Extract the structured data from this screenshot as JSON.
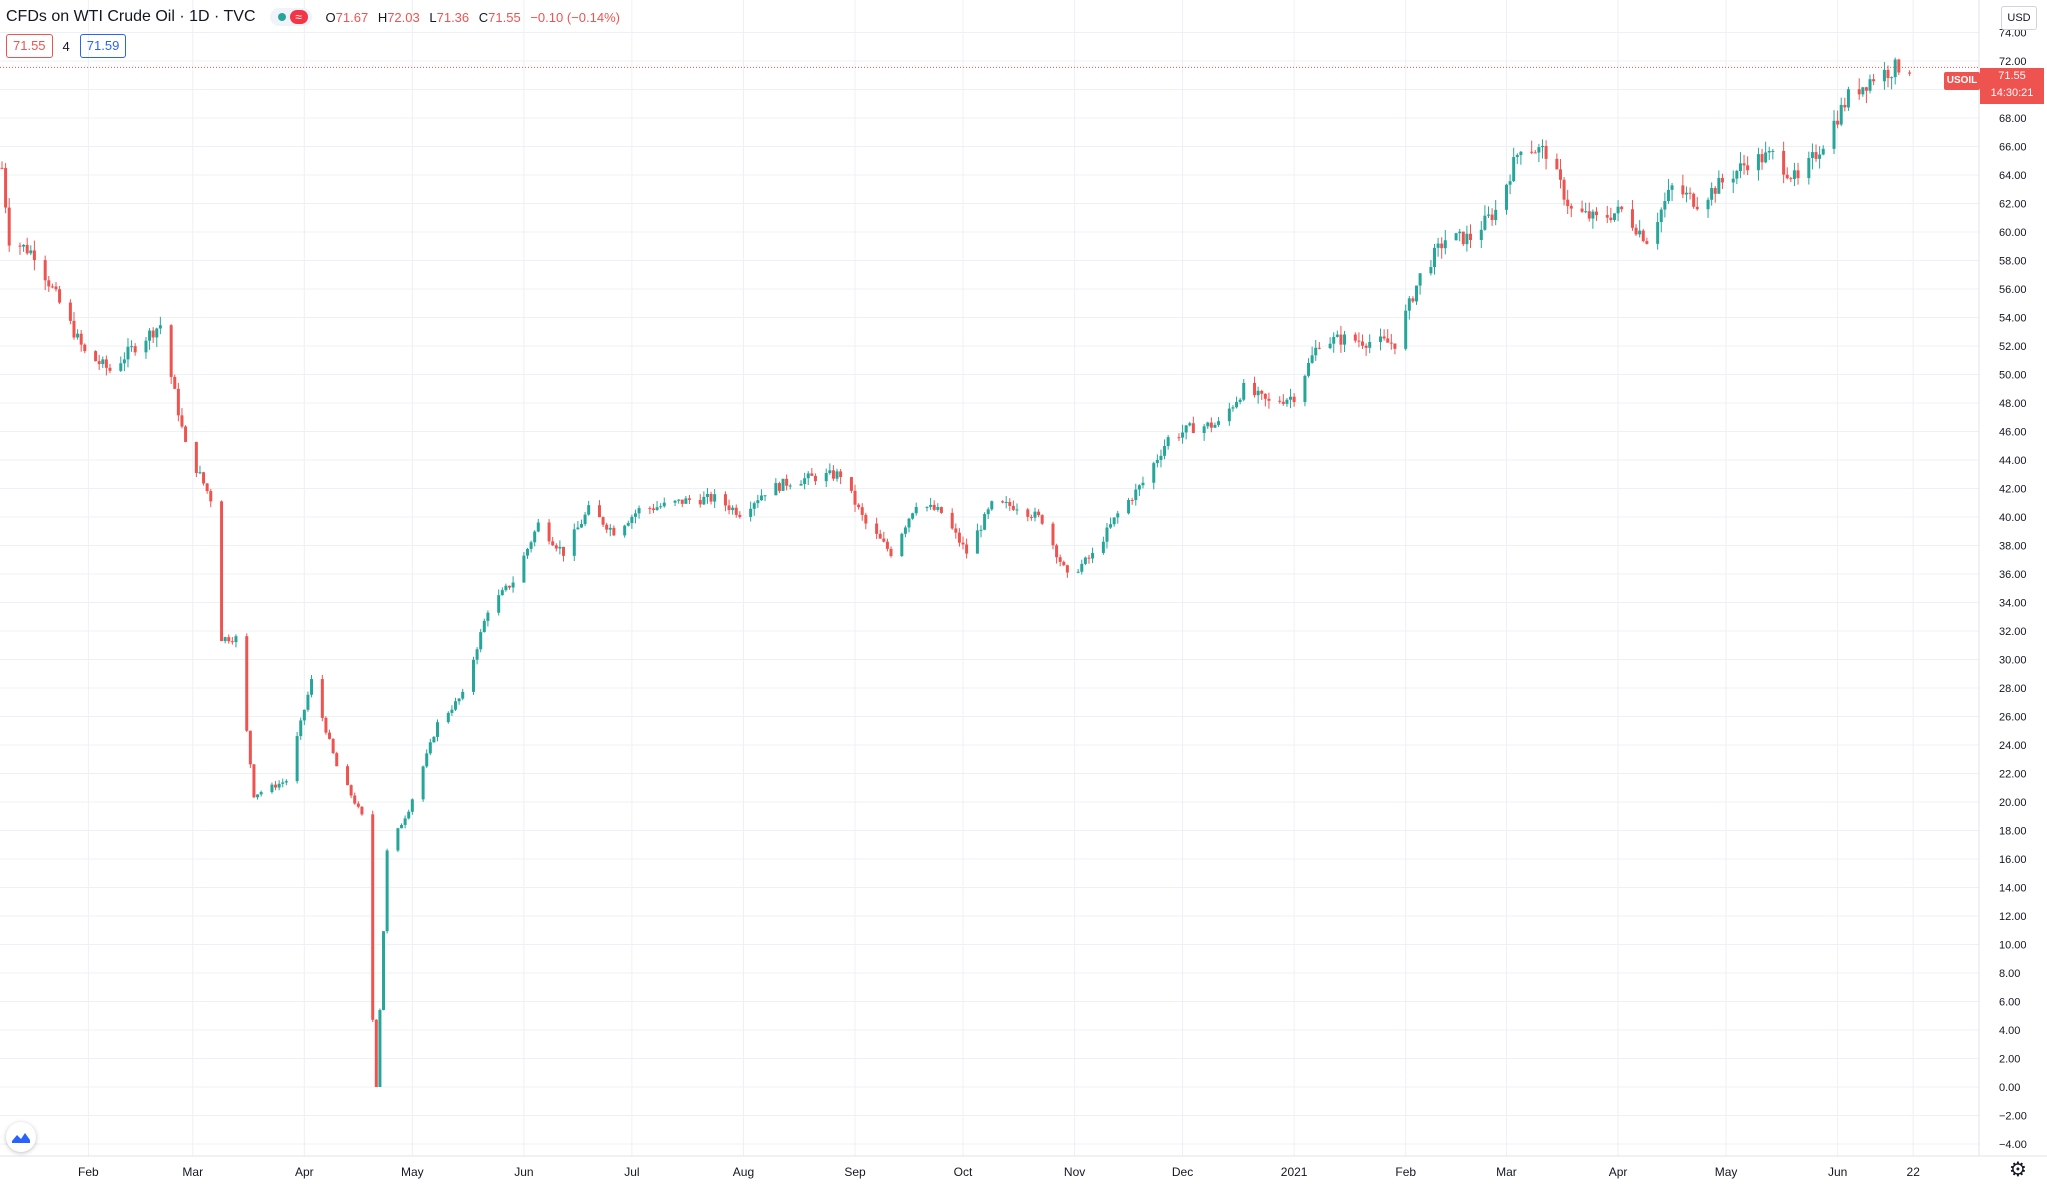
{
  "header": {
    "symbol_title": "CFDs on WTI Crude Oil · 1D · TVC",
    "status_approx": "≈",
    "ohlc": {
      "o_label": "O",
      "o_value": "71.67",
      "h_label": "H",
      "h_value": "72.03",
      "l_label": "L",
      "l_value": "71.36",
      "c_label": "C",
      "c_value": "71.55",
      "change": "−0.10 (−0.14%)"
    },
    "bid": "71.55",
    "spread": "4",
    "ask": "71.59"
  },
  "price_scale": {
    "currency": "USD",
    "symbol_tag": "USOIL",
    "last_price": "71.55",
    "countdown": "14:30:21"
  },
  "colors": {
    "up": "#26a69a",
    "down": "#ef5350",
    "grid": "#edf0f5",
    "text": "#131722",
    "accent_blue": "#2962ff"
  },
  "chart_data": {
    "type": "candlestick",
    "y_unit": "USD",
    "ylim": [
      -4,
      76
    ],
    "y_ticks": [
      -4,
      -2,
      0,
      2,
      4,
      6,
      8,
      10,
      12,
      14,
      16,
      18,
      20,
      22,
      24,
      26,
      28,
      30,
      32,
      34,
      36,
      38,
      40,
      42,
      44,
      46,
      48,
      50,
      52,
      54,
      56,
      58,
      60,
      62,
      64,
      66,
      68,
      70,
      72,
      74
    ],
    "x_ticks": [
      {
        "label": "Feb",
        "date": "2020-02-01"
      },
      {
        "label": "Mar",
        "date": "2020-03-01"
      },
      {
        "label": "Apr",
        "date": "2020-04-01"
      },
      {
        "label": "May",
        "date": "2020-05-01"
      },
      {
        "label": "Jun",
        "date": "2020-06-01"
      },
      {
        "label": "Jul",
        "date": "2020-07-01"
      },
      {
        "label": "Aug",
        "date": "2020-08-01"
      },
      {
        "label": "Sep",
        "date": "2020-09-01"
      },
      {
        "label": "Oct",
        "date": "2020-10-01"
      },
      {
        "label": "Nov",
        "date": "2020-11-01"
      },
      {
        "label": "Dec",
        "date": "2020-12-01"
      },
      {
        "label": "2021",
        "date": "2021-01-01"
      },
      {
        "label": "Feb",
        "date": "2021-02-01"
      },
      {
        "label": "Mar",
        "date": "2021-03-01"
      },
      {
        "label": "Apr",
        "date": "2021-04-01"
      },
      {
        "label": "May",
        "date": "2021-05-01"
      },
      {
        "label": "Jun",
        "date": "2021-06-01"
      },
      {
        "label": "22",
        "date": "2021-06-22"
      }
    ],
    "x_range": [
      "2020-01-08",
      "2021-06-30"
    ],
    "closes": [
      {
        "date": "2020-01-08",
        "close": 64.5
      },
      {
        "date": "2020-01-10",
        "close": 59.5
      },
      {
        "date": "2020-01-17",
        "close": 58.5
      },
      {
        "date": "2020-01-24",
        "close": 55.0
      },
      {
        "date": "2020-01-31",
        "close": 51.5
      },
      {
        "date": "2020-02-07",
        "close": 50.3
      },
      {
        "date": "2020-02-14",
        "close": 52.0
      },
      {
        "date": "2020-02-21",
        "close": 53.5
      },
      {
        "date": "2020-02-28",
        "close": 45.0
      },
      {
        "date": "2020-03-06",
        "close": 41.3
      },
      {
        "date": "2020-03-09",
        "close": 31.5
      },
      {
        "date": "2020-03-13",
        "close": 31.5
      },
      {
        "date": "2020-03-18",
        "close": 20.5
      },
      {
        "date": "2020-03-27",
        "close": 21.5
      },
      {
        "date": "2020-04-03",
        "close": 28.5
      },
      {
        "date": "2020-04-10",
        "close": 22.5
      },
      {
        "date": "2020-04-17",
        "close": 19.0
      },
      {
        "date": "2020-04-21",
        "close": 0.0
      },
      {
        "date": "2020-04-24",
        "close": 16.5
      },
      {
        "date": "2020-04-30",
        "close": 19.5
      },
      {
        "date": "2020-05-08",
        "close": 25.5
      },
      {
        "date": "2020-05-15",
        "close": 27.5
      },
      {
        "date": "2020-05-22",
        "close": 33.5
      },
      {
        "date": "2020-05-29",
        "close": 35.5
      },
      {
        "date": "2020-06-05",
        "close": 39.5
      },
      {
        "date": "2020-06-12",
        "close": 37.5
      },
      {
        "date": "2020-06-19",
        "close": 40.5
      },
      {
        "date": "2020-06-26",
        "close": 39.0
      },
      {
        "date": "2020-07-03",
        "close": 40.5
      },
      {
        "date": "2020-07-10",
        "close": 40.8
      },
      {
        "date": "2020-07-17",
        "close": 41.2
      },
      {
        "date": "2020-07-24",
        "close": 41.3
      },
      {
        "date": "2020-07-31",
        "close": 40.3
      },
      {
        "date": "2020-08-07",
        "close": 41.8
      },
      {
        "date": "2020-08-14",
        "close": 42.5
      },
      {
        "date": "2020-08-21",
        "close": 42.8
      },
      {
        "date": "2020-08-28",
        "close": 43.0
      },
      {
        "date": "2020-09-04",
        "close": 39.5
      },
      {
        "date": "2020-09-11",
        "close": 37.5
      },
      {
        "date": "2020-09-18",
        "close": 41.0
      },
      {
        "date": "2020-09-25",
        "close": 40.3
      },
      {
        "date": "2020-10-02",
        "close": 37.5
      },
      {
        "date": "2020-10-09",
        "close": 40.8
      },
      {
        "date": "2020-10-16",
        "close": 40.8
      },
      {
        "date": "2020-10-23",
        "close": 39.8
      },
      {
        "date": "2020-10-30",
        "close": 35.8
      },
      {
        "date": "2020-11-06",
        "close": 37.3
      },
      {
        "date": "2020-11-13",
        "close": 40.2
      },
      {
        "date": "2020-11-20",
        "close": 42.4
      },
      {
        "date": "2020-11-27",
        "close": 45.5
      },
      {
        "date": "2020-12-04",
        "close": 46.3
      },
      {
        "date": "2020-12-11",
        "close": 46.5
      },
      {
        "date": "2020-12-18",
        "close": 49.0
      },
      {
        "date": "2020-12-25",
        "close": 48.0
      },
      {
        "date": "2021-01-01",
        "close": 48.5
      },
      {
        "date": "2021-01-08",
        "close": 52.3
      },
      {
        "date": "2021-01-15",
        "close": 52.5
      },
      {
        "date": "2021-01-22",
        "close": 52.3
      },
      {
        "date": "2021-01-29",
        "close": 52.2
      },
      {
        "date": "2021-02-05",
        "close": 56.9
      },
      {
        "date": "2021-02-12",
        "close": 59.5
      },
      {
        "date": "2021-02-19",
        "close": 59.6
      },
      {
        "date": "2021-02-26",
        "close": 61.5
      },
      {
        "date": "2021-03-05",
        "close": 66.1
      },
      {
        "date": "2021-03-12",
        "close": 65.6
      },
      {
        "date": "2021-03-19",
        "close": 61.5
      },
      {
        "date": "2021-03-26",
        "close": 60.9
      },
      {
        "date": "2021-04-02",
        "close": 61.5
      },
      {
        "date": "2021-04-09",
        "close": 59.5
      },
      {
        "date": "2021-04-16",
        "close": 63.1
      },
      {
        "date": "2021-04-23",
        "close": 62.1
      },
      {
        "date": "2021-04-30",
        "close": 63.5
      },
      {
        "date": "2021-05-07",
        "close": 64.9
      },
      {
        "date": "2021-05-14",
        "close": 65.4
      },
      {
        "date": "2021-05-21",
        "close": 63.5
      },
      {
        "date": "2021-05-28",
        "close": 66.3
      },
      {
        "date": "2021-06-04",
        "close": 69.5
      },
      {
        "date": "2021-06-11",
        "close": 70.9
      },
      {
        "date": "2021-06-18",
        "close": 71.6
      },
      {
        "date": "2021-06-22",
        "close": 71.55
      }
    ],
    "last_price": 71.55
  }
}
